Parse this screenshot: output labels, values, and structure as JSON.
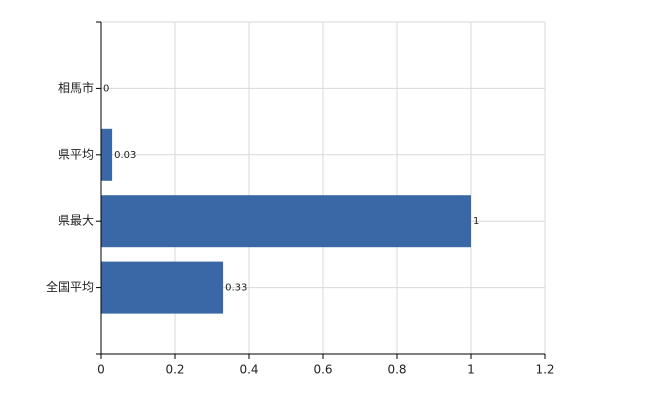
{
  "chart_data": {
    "type": "bar",
    "orientation": "horizontal",
    "categories": [
      "相馬市",
      "県平均",
      "県最大",
      "全国平均"
    ],
    "values": [
      0,
      0.03,
      1,
      0.33
    ],
    "color": "#3a68a6",
    "xlim": [
      0,
      1.2
    ],
    "xticks": [
      0,
      0.2,
      0.4,
      0.6,
      0.8,
      1,
      1.2
    ],
    "grid": true
  }
}
